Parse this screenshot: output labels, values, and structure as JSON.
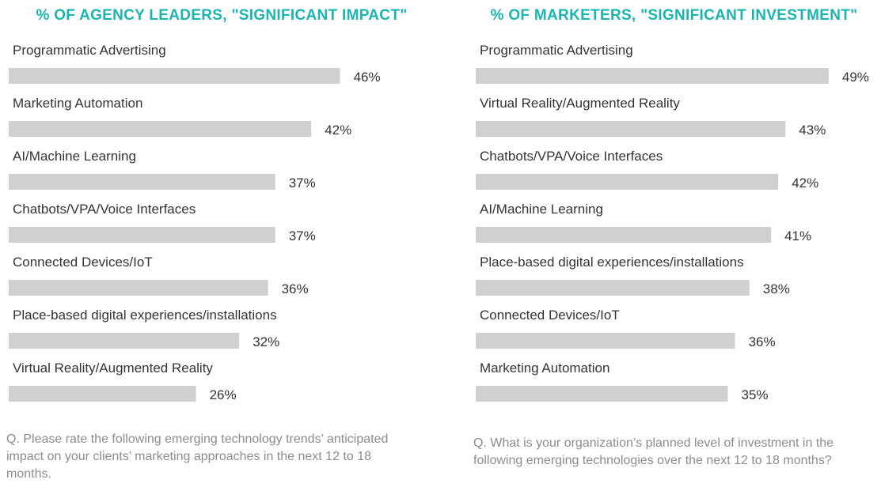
{
  "colors": {
    "title": "#1ab5b0",
    "bar": "#d0d0d0",
    "text": "#333333",
    "question": "#8c8c8c"
  },
  "left": {
    "title": "% OF AGENCY LEADERS, \"SIGNIFICANT IMPACT\"",
    "question": "Q. Please rate the following emerging technology trends’ anticipated impact on your clients’ marketing approaches in the next 12 to 18 months."
  },
  "right": {
    "title": "% OF MARKETERS, \"SIGNIFICANT INVESTMENT\"",
    "question": "Q. What is your organization’s planned level of investment in the following emerging technologies over the next 12 to 18 months?"
  },
  "chart_data": [
    {
      "type": "bar",
      "orientation": "horizontal",
      "title": "% OF AGENCY LEADERS, \"SIGNIFICANT IMPACT\"",
      "categories": [
        "Programmatic Advertising",
        "Marketing Automation",
        "AI/Machine Learning",
        "Chatbots/VPA/Voice Interfaces",
        "Connected Devices/IoT",
        "Place-based digital experiences/installations",
        "Virtual Reality/Augmented Reality"
      ],
      "values": [
        46,
        42,
        37,
        37,
        36,
        32,
        26
      ],
      "value_labels": [
        "46%",
        "42%",
        "37%",
        "37%",
        "36%",
        "32%",
        "26%"
      ],
      "unit": "%",
      "grid": false,
      "legend": "none"
    },
    {
      "type": "bar",
      "orientation": "horizontal",
      "title": "% OF MARKETERS, \"SIGNIFICANT INVESTMENT\"",
      "categories": [
        "Programmatic Advertising",
        "Virtual Reality/Augmented Reality",
        "Chatbots/VPA/Voice Interfaces",
        "AI/Machine Learning",
        "Place-based digital experiences/installations",
        "Connected Devices/IoT",
        "Marketing Automation"
      ],
      "values": [
        49,
        43,
        42,
        41,
        38,
        36,
        35
      ],
      "value_labels": [
        "49%",
        "43%",
        "42%",
        "41%",
        "38%",
        "36%",
        "35%"
      ],
      "unit": "%",
      "grid": false,
      "legend": "none"
    }
  ]
}
